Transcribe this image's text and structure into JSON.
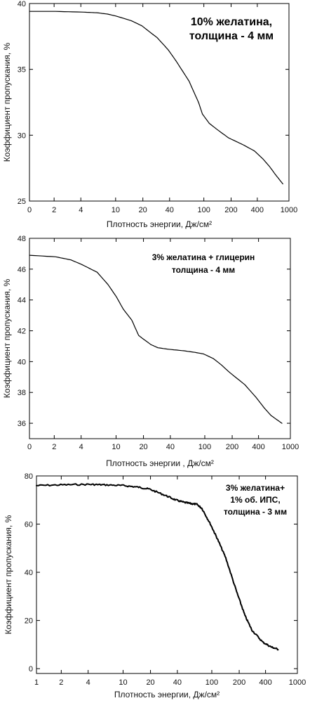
{
  "chart_data": [
    {
      "type": "line",
      "x_tick_labels": [
        "0",
        "2",
        "4",
        "10",
        "20",
        "40",
        "100",
        "200",
        "400",
        "1000"
      ],
      "y_ticks": [
        25,
        30,
        35,
        40
      ],
      "y_tick_labels": [
        "25",
        "30",
        "35",
        "40"
      ],
      "ylim": [
        25,
        40
      ],
      "xlabel": "Плотность энергии,  Дж/см²",
      "ylabel": "Коэффициент пропускания, %",
      "annotation": [
        "10% желатина,",
        "толщина - 4 мм"
      ],
      "grid": false,
      "series": [
        {
          "x": [
            1,
            2,
            4,
            6,
            8,
            10,
            15,
            20,
            30,
            40,
            50,
            70,
            90,
            100,
            120,
            150,
            200,
            250,
            300,
            400,
            500,
            600,
            700,
            850
          ],
          "y": [
            39.4,
            39.4,
            39.35,
            39.3,
            39.2,
            39.05,
            38.7,
            38.3,
            37.4,
            36.5,
            35.6,
            34.1,
            32.5,
            31.6,
            30.9,
            30.4,
            29.8,
            29.5,
            29.25,
            28.8,
            28.2,
            27.6,
            27.0,
            26.3
          ]
        }
      ]
    },
    {
      "type": "line",
      "x_tick_labels": [
        "0",
        "2",
        "4",
        "10",
        "20",
        "40",
        "100",
        "200",
        "400",
        "1000"
      ],
      "y_ticks": [
        36,
        38,
        40,
        42,
        44,
        46,
        48
      ],
      "y_tick_labels": [
        "36",
        "38",
        "40",
        "42",
        "44",
        "46",
        "48"
      ],
      "ylim": [
        35,
        48
      ],
      "xlabel": "Плотность энергии ,  Дж/см²",
      "ylabel": "Коэффициент пропускания, %",
      "annotation": [
        "3% желатина + глицерин",
        "толщина - 4 мм"
      ],
      "grid": false,
      "series": [
        {
          "x": [
            1,
            2,
            3,
            4,
            6,
            8,
            10,
            12,
            15,
            18,
            20,
            25,
            30,
            40,
            60,
            80,
            100,
            130,
            160,
            200,
            300,
            400,
            500,
            600,
            800
          ],
          "y": [
            46.9,
            46.8,
            46.6,
            46.3,
            45.8,
            45.0,
            44.2,
            43.4,
            42.7,
            41.7,
            41.5,
            41.1,
            40.9,
            40.8,
            40.7,
            40.6,
            40.5,
            40.2,
            39.8,
            39.3,
            38.5,
            37.7,
            37.0,
            36.5,
            36.0
          ]
        }
      ]
    },
    {
      "type": "line",
      "x_tick_labels": [
        "1",
        "2",
        "4",
        "10",
        "20",
        "40",
        "100",
        "200",
        "400",
        "1000"
      ],
      "y_ticks": [
        0,
        20,
        40,
        60,
        80
      ],
      "y_tick_labels": [
        "0",
        "20",
        "40",
        "60",
        "80"
      ],
      "ylim": [
        -2,
        80
      ],
      "xlabel": "Плотность энергии, Дж/см²",
      "ylabel": "Коэффициент пропускания, %",
      "annotation": [
        "3% желатина+",
        "1% об. ИПС,",
        "толщина - 3 мм"
      ],
      "grid": false,
      "series": [
        {
          "x": [
            1,
            2,
            4,
            6,
            10,
            15,
            20,
            30,
            40,
            50,
            60,
            70,
            80,
            100,
            120,
            150,
            200,
            250,
            300,
            400,
            500,
            600
          ],
          "y": [
            76,
            76.3,
            76.5,
            76.3,
            76,
            75.3,
            74.5,
            72,
            70,
            69,
            68.5,
            68.2,
            66.5,
            60,
            54,
            46,
            32,
            22,
            16,
            11,
            9,
            8
          ]
        }
      ]
    }
  ]
}
